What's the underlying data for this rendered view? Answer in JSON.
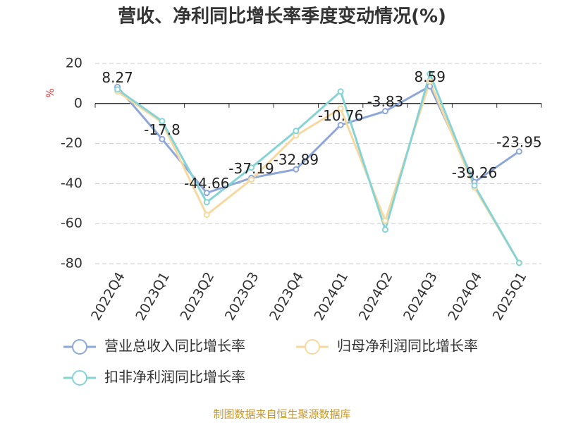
{
  "chart_data": {
    "type": "line",
    "title": "营收、净利同比增长率季度变动情况(%)",
    "y_label": "%",
    "source": "制图数据来自恒生聚源数据库",
    "categories": [
      "2022Q4",
      "2023Q1",
      "2023Q2",
      "2023Q3",
      "2023Q4",
      "2024Q1",
      "2024Q2",
      "2024Q3",
      "2024Q4",
      "2025Q1"
    ],
    "series": [
      {
        "name": "营业总收入同比增长率",
        "color": "#8ea7d9",
        "show_values": true,
        "values": [
          8.27,
          -17.8,
          -44.66,
          -37.19,
          -32.89,
          -10.76,
          -3.83,
          8.59,
          -39.26,
          -23.95
        ]
      },
      {
        "name": "归母净利润同比增长率",
        "color": "#f7d9a0",
        "show_values": false,
        "values": [
          6,
          -9.5,
          -55.6,
          -38,
          -16,
          -2.5,
          -58.5,
          11,
          -42,
          -79.6
        ]
      },
      {
        "name": "扣非净利润同比增长率",
        "color": "#86d3d6",
        "show_values": false,
        "values": [
          7,
          -8.8,
          -49.3,
          -32,
          -13.7,
          6,
          -63,
          14.8,
          -41,
          -79.6
        ]
      }
    ],
    "ylim": [
      -80,
      20
    ],
    "yticks": [
      20,
      0,
      -20,
      -40,
      -60,
      -80
    ],
    "grid": true
  }
}
